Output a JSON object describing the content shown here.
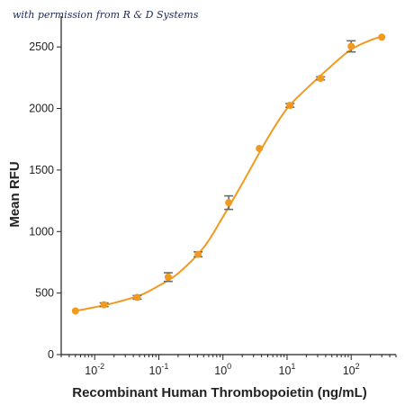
{
  "caption": "with permission from R & D Systems",
  "colors": {
    "line": "#f29a1f",
    "marker": "#f29a1f",
    "error_bar": "#6b6b6b",
    "axis": "#222222"
  },
  "chart_data": {
    "type": "scatter",
    "xlabel": "Recombinant Human Thrombopoietin (ng/mL)",
    "ylabel": "Mean RFU",
    "x_scale": "log",
    "xlim": [
      0.003,
      500
    ],
    "ylim": [
      0,
      2750
    ],
    "y_ticks": [
      0,
      500,
      1000,
      1500,
      2000,
      2500
    ],
    "x_ticks": [
      {
        "value": 0.01,
        "base": "10",
        "exp": "-2"
      },
      {
        "value": 0.1,
        "base": "10",
        "exp": "-1"
      },
      {
        "value": 1,
        "base": "10",
        "exp": "0"
      },
      {
        "value": 10,
        "base": "10",
        "exp": "1"
      },
      {
        "value": 100,
        "base": "10",
        "exp": "2"
      }
    ],
    "series": [
      {
        "points": [
          {
            "x": 0.005,
            "y": 355,
            "err": 0
          },
          {
            "x": 0.014,
            "y": 405,
            "err": 15
          },
          {
            "x": 0.046,
            "y": 465,
            "err": 15
          },
          {
            "x": 0.14,
            "y": 630,
            "err": 35
          },
          {
            "x": 0.41,
            "y": 815,
            "err": 20
          },
          {
            "x": 1.23,
            "y": 1235,
            "err": 55
          },
          {
            "x": 3.7,
            "y": 1675,
            "err": 0
          },
          {
            "x": 11.1,
            "y": 2025,
            "err": 15
          },
          {
            "x": 33.3,
            "y": 2245,
            "err": 12
          },
          {
            "x": 100,
            "y": 2505,
            "err": 45
          },
          {
            "x": 300,
            "y": 2580,
            "err": 0
          }
        ],
        "curve": [
          [
            0.005,
            355
          ],
          [
            0.01,
            385
          ],
          [
            0.02,
            420
          ],
          [
            0.05,
            480
          ],
          [
            0.1,
            560
          ],
          [
            0.2,
            660
          ],
          [
            0.5,
            870
          ],
          [
            1,
            1120
          ],
          [
            2,
            1390
          ],
          [
            5,
            1760
          ],
          [
            10,
            2000
          ],
          [
            20,
            2160
          ],
          [
            50,
            2350
          ],
          [
            100,
            2480
          ],
          [
            200,
            2555
          ],
          [
            300,
            2585
          ]
        ]
      }
    ]
  }
}
